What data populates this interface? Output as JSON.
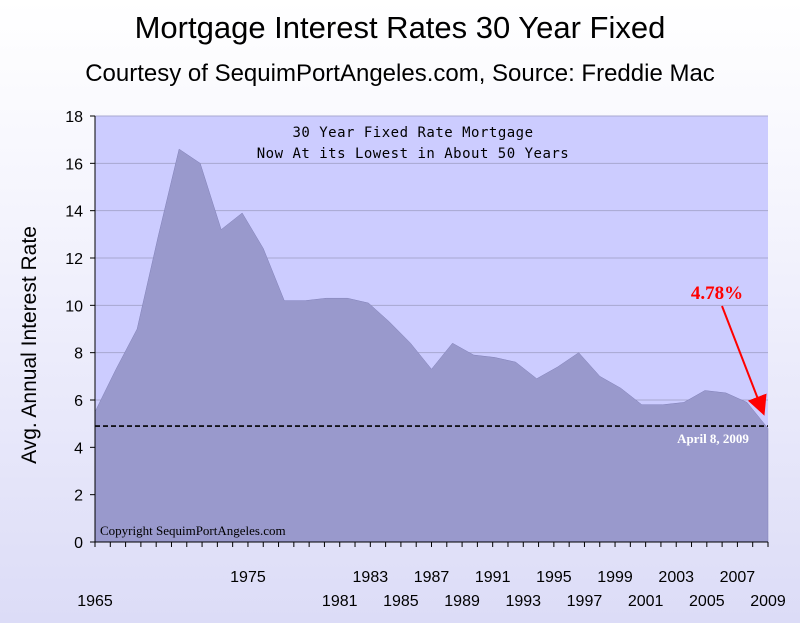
{
  "chart_data": {
    "type": "area",
    "title": "Mortgage Interest Rates 30 Year Fixed",
    "subtitle": "Courtesy of SequimPortAngeles.com, Source: Freddie Mac",
    "xlabel": "",
    "ylabel": "Avg. Annual Interest Rate",
    "ylim": [
      0,
      18
    ],
    "xlim": [
      1965,
      2009
    ],
    "yticks": [
      0,
      2,
      4,
      6,
      8,
      10,
      12,
      14,
      16,
      18
    ],
    "xticks_upper": [
      "1975",
      "1983",
      "1987",
      "1991",
      "1995",
      "1999",
      "2003",
      "2007"
    ],
    "xticks_lower": [
      "1965",
      "1981",
      "1985",
      "1989",
      "1993",
      "1997",
      "2001",
      "2005",
      "2009"
    ],
    "grid": "horizontal",
    "fill_color": "#9999cc",
    "x": [
      1965,
      1966,
      1967,
      1968,
      1969,
      1970,
      1971,
      1972,
      1973,
      1974,
      1975,
      1976,
      1977,
      1978,
      1979,
      1980,
      1981,
      1982,
      1983,
      1984,
      1985,
      1986,
      1987,
      1988,
      1989,
      1990,
      1991,
      1992,
      1993,
      1994,
      1995,
      1996,
      1997,
      1998,
      1999,
      2000,
      2001,
      2002,
      2003,
      2004,
      2005,
      2006,
      2007,
      2008,
      2009
    ],
    "values": [
      5.5,
      7.3,
      9.0,
      12.9,
      16.6,
      16.0,
      13.2,
      13.9,
      12.4,
      10.2,
      10.2,
      10.3,
      10.3,
      10.1,
      9.3,
      8.4,
      7.3,
      8.4,
      7.9,
      7.8,
      7.6,
      6.9,
      7.4,
      8.0,
      7.0,
      6.5,
      5.8,
      5.8,
      5.9,
      6.4,
      6.3,
      5.9,
      4.8,
      null,
      null,
      null,
      null,
      null,
      null,
      null,
      null,
      null,
      null,
      null,
      null
    ],
    "reference_line": {
      "value": 4.9,
      "style": "dashed"
    },
    "annotations": {
      "box_line1": "30 Year Fixed Rate Mortgage",
      "box_line2": "Now At its Lowest in About 50 Years",
      "callout_value": "4.78%",
      "callout_color": "#ff0000",
      "date_label": "April 8, 2009",
      "copyright": "Copyright SequimPortAngeles.com"
    }
  }
}
